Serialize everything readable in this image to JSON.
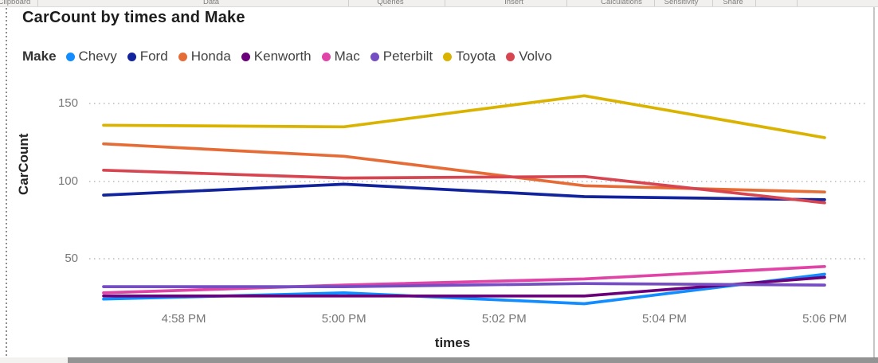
{
  "ribbon": {
    "groups": [
      {
        "label": "Clipboard"
      },
      {
        "label": "Data"
      },
      {
        "label": "Queries"
      },
      {
        "label": "Insert"
      },
      {
        "label": "Calculations"
      },
      {
        "label": "Sensitivity"
      },
      {
        "label": "Share"
      }
    ]
  },
  "chart_data": {
    "type": "line",
    "title": "CarCount by times and Make",
    "xlabel": "times",
    "ylabel": "CarCount",
    "legend_title": "Make",
    "legend_position": "top",
    "grid": "horizontal-dotted",
    "x": [
      "4:57 PM",
      "5:00 PM",
      "5:03 PM",
      "5:06 PM"
    ],
    "x_axis_ticks": [
      "4:58 PM",
      "5:00 PM",
      "5:02 PM",
      "5:04 PM",
      "5:06 PM"
    ],
    "y_ticks": [
      50,
      100,
      150
    ],
    "ylim": [
      15,
      160
    ],
    "series": [
      {
        "name": "Chevy",
        "color": "#118DFF",
        "values": [
          24,
          28,
          21,
          40
        ]
      },
      {
        "name": "Ford",
        "color": "#12239E",
        "values": [
          91,
          98,
          90,
          88
        ]
      },
      {
        "name": "Honda",
        "color": "#E66C37",
        "values": [
          124,
          116,
          97,
          93
        ]
      },
      {
        "name": "Kenworth",
        "color": "#6B007B",
        "values": [
          26,
          26,
          26,
          38
        ]
      },
      {
        "name": "Mac",
        "color": "#E044A7",
        "values": [
          28,
          33,
          37,
          45
        ]
      },
      {
        "name": "Peterbilt",
        "color": "#744EC2",
        "values": [
          32,
          32,
          34,
          33
        ]
      },
      {
        "name": "Toyota",
        "color": "#D9B300",
        "values": [
          136,
          135,
          155,
          128
        ]
      },
      {
        "name": "Volvo",
        "color": "#D64550",
        "values": [
          107,
          102,
          103,
          86
        ]
      }
    ]
  }
}
